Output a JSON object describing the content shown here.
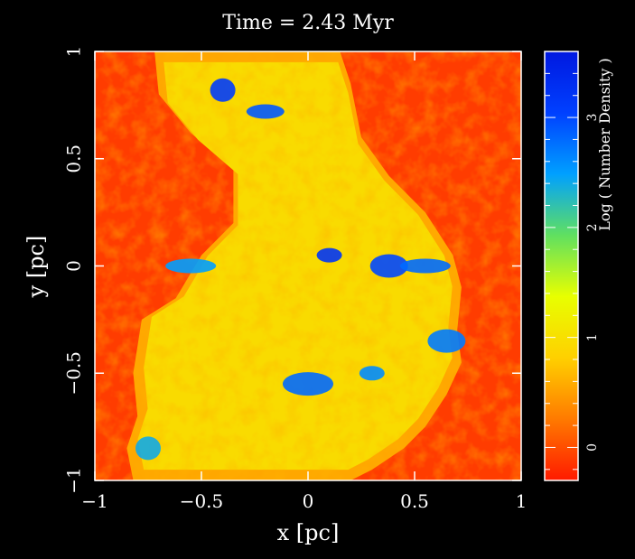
{
  "chart_data": {
    "type": "heatmap",
    "title": "Time =  2.43 Myr",
    "xlabel": "x [pc]",
    "ylabel": "y [pc]",
    "xlim": [
      -1,
      1
    ],
    "ylim": [
      -1,
      1
    ],
    "xticks": [
      {
        "value": -1,
        "label": "−1"
      },
      {
        "value": -0.5,
        "label": "−0.5"
      },
      {
        "value": 0,
        "label": "0"
      },
      {
        "value": 0.5,
        "label": "0.5"
      },
      {
        "value": 1,
        "label": "1"
      }
    ],
    "yticks": [
      {
        "value": -1,
        "label": "−1"
      },
      {
        "value": -0.5,
        "label": "−0.5"
      },
      {
        "value": 0,
        "label": "0"
      },
      {
        "value": 0.5,
        "label": "0.5"
      },
      {
        "value": 1,
        "label": "1"
      }
    ],
    "colorbar": {
      "label": "Log ( Number Density )",
      "range": [
        -0.3,
        3.6
      ],
      "ticks": [
        {
          "value": 0,
          "label": "0"
        },
        {
          "value": 1,
          "label": "1"
        },
        {
          "value": 2,
          "label": "2"
        },
        {
          "value": 3,
          "label": "3"
        }
      ],
      "colors": [
        "#ff1a00",
        "#ff7a00",
        "#ffd000",
        "#e8ff00",
        "#60e060",
        "#00a0ff",
        "#0040ff",
        "#0018e0"
      ]
    },
    "background_value": -0.1,
    "shell_outline_right": [
      [
        0.15,
        1
      ],
      [
        0.2,
        0.85
      ],
      [
        0.25,
        0.6
      ],
      [
        0.38,
        0.42
      ],
      [
        0.55,
        0.25
      ],
      [
        0.68,
        0.05
      ],
      [
        0.72,
        -0.1
      ],
      [
        0.7,
        -0.3
      ],
      [
        0.72,
        -0.45
      ],
      [
        0.65,
        -0.6
      ],
      [
        0.55,
        -0.75
      ],
      [
        0.45,
        -0.85
      ],
      [
        0.3,
        -0.95
      ],
      [
        0.2,
        -1
      ]
    ],
    "shell_outline_left": [
      [
        -0.72,
        1
      ],
      [
        -0.7,
        0.8
      ],
      [
        -0.55,
        0.62
      ],
      [
        -0.35,
        0.45
      ],
      [
        -0.35,
        0.2
      ],
      [
        -0.5,
        0.05
      ],
      [
        -0.62,
        -0.15
      ],
      [
        -0.78,
        -0.25
      ],
      [
        -0.82,
        -0.5
      ],
      [
        -0.8,
        -0.7
      ],
      [
        -0.85,
        -0.85
      ],
      [
        -0.82,
        -1
      ]
    ],
    "dense_clumps": [
      {
        "x": 0.1,
        "y": 0.05,
        "value": 3.2
      },
      {
        "x": 0.38,
        "y": 0.0,
        "value": 3.0
      },
      {
        "x": 0.55,
        "y": 0.0,
        "value": 2.8
      },
      {
        "x": -0.4,
        "y": 0.82,
        "value": 3.1
      },
      {
        "x": -0.2,
        "y": 0.72,
        "value": 2.9
      },
      {
        "x": 0.0,
        "y": -0.55,
        "value": 2.8
      },
      {
        "x": 0.3,
        "y": -0.5,
        "value": 2.6
      },
      {
        "x": 0.65,
        "y": -0.35,
        "value": 2.7
      },
      {
        "x": -0.55,
        "y": 0.0,
        "value": 2.5
      },
      {
        "x": -0.75,
        "y": -0.85,
        "value": 2.4
      }
    ]
  }
}
